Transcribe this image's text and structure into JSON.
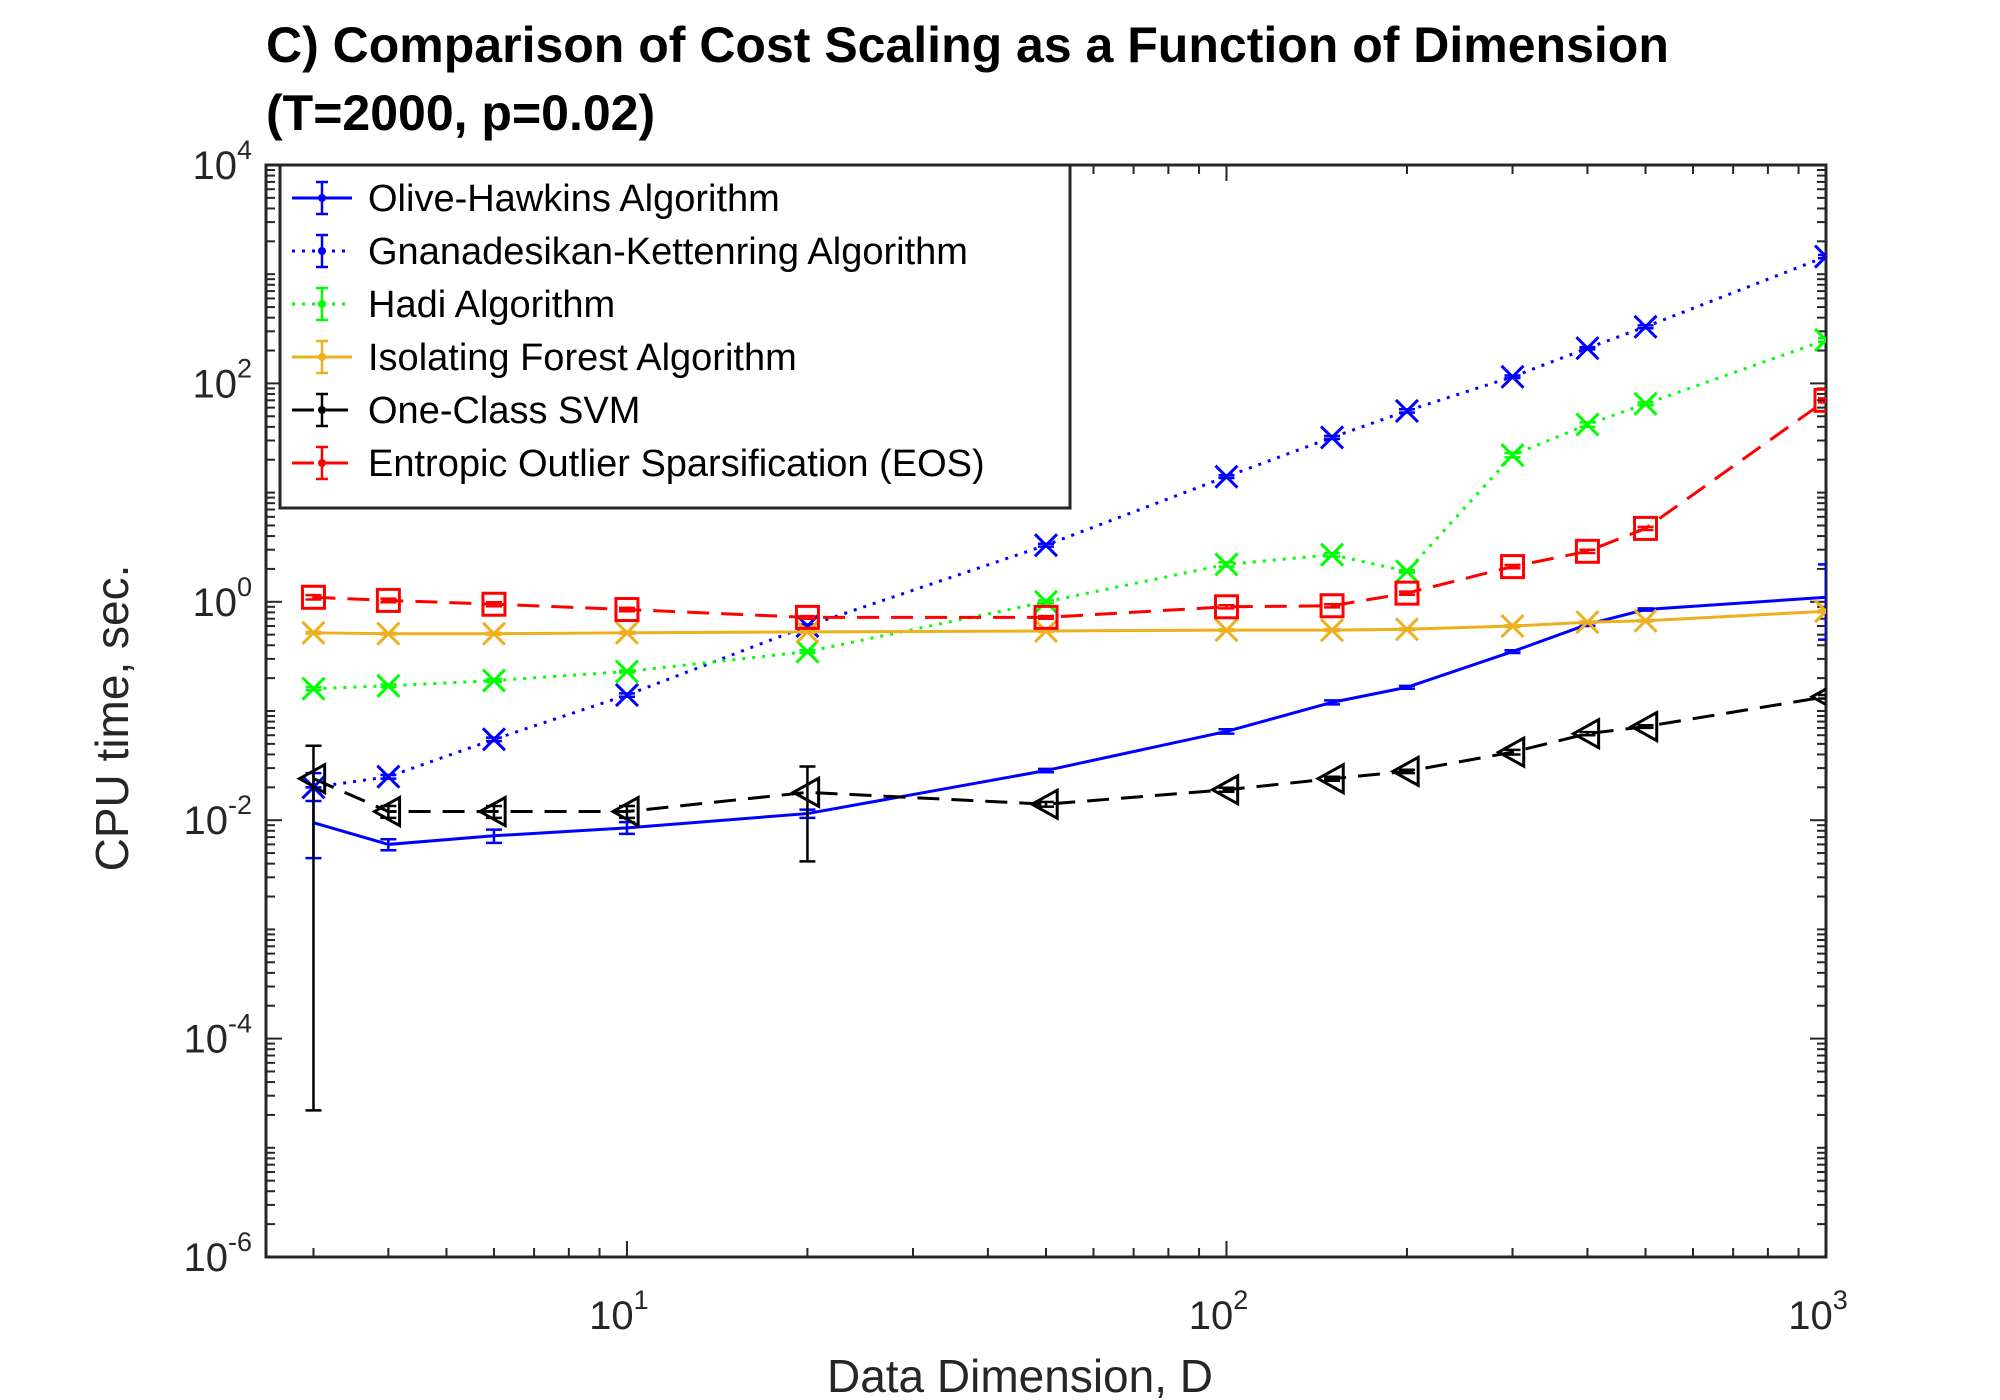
{
  "chart_data": {
    "type": "line",
    "title_line1": "C) Comparison of Cost Scaling as a Function of Dimension",
    "title_line2": "(T=2000, p=0.02)",
    "xlabel": "Data Dimension, D",
    "ylabel": "CPU time, sec.",
    "xscale": "log",
    "yscale": "log",
    "xlim": [
      2.5,
      1000
    ],
    "ylim": [
      1e-06,
      10000
    ],
    "x_ticks": [
      {
        "base": "10",
        "exp": "1",
        "value": 10
      },
      {
        "base": "10",
        "exp": "2",
        "value": 100
      },
      {
        "base": "10",
        "exp": "3",
        "value": 1000
      }
    ],
    "y_ticks": [
      {
        "base": "10",
        "exp": "-6",
        "value": 1e-06
      },
      {
        "base": "10",
        "exp": "-4",
        "value": 0.0001
      },
      {
        "base": "10",
        "exp": "-2",
        "value": 0.01
      },
      {
        "base": "10",
        "exp": "0",
        "value": 1
      },
      {
        "base": "10",
        "exp": "2",
        "value": 100
      },
      {
        "base": "10",
        "exp": "4",
        "value": 10000
      }
    ],
    "grid": false,
    "legend_position": "top-left",
    "series": [
      {
        "name": "Olive-Hawkins Algorithm",
        "color": "#0000ff",
        "line": "solid",
        "marker": "none",
        "x": [
          3,
          4,
          6,
          10,
          20,
          50,
          100,
          150,
          200,
          300,
          400,
          500,
          1000
        ],
        "y": [
          0.0095,
          0.006,
          0.0072,
          0.0085,
          0.0115,
          0.0285,
          0.065,
          0.12,
          0.165,
          0.35,
          0.62,
          0.85,
          1.1
        ],
        "err_low": [
          0.0045,
          0.0053,
          0.0062,
          0.0075,
          0.0105,
          0.0275,
          0.062,
          0.115,
          0.16,
          0.34,
          0.6,
          0.83,
          0.45
        ],
        "err_high": [
          0.02,
          0.0067,
          0.0082,
          0.0096,
          0.0125,
          0.0295,
          0.068,
          0.125,
          0.17,
          0.36,
          0.64,
          0.87,
          2.2
        ]
      },
      {
        "name": "Gnanadesikan-Kettenring Algorithm",
        "color": "#0000ff",
        "line": "dotted",
        "marker": "x",
        "x": [
          3,
          4,
          6,
          10,
          20,
          50,
          100,
          150,
          200,
          300,
          400,
          500,
          1000
        ],
        "y": [
          0.02,
          0.025,
          0.055,
          0.14,
          0.6,
          3.3,
          14,
          32,
          56,
          115,
          210,
          330,
          1450
        ],
        "err_low": [
          0.015,
          0.024,
          0.053,
          0.135,
          0.58,
          3.2,
          13.6,
          31,
          54,
          112,
          205,
          320,
          1400
        ],
        "err_high": [
          0.027,
          0.026,
          0.057,
          0.145,
          0.62,
          3.4,
          14.4,
          33,
          58,
          118,
          215,
          340,
          1500
        ]
      },
      {
        "name": "Hadi Algorithm",
        "color": "#00ff00",
        "line": "dotted",
        "marker": "x",
        "x": [
          3,
          4,
          6,
          10,
          20,
          50,
          100,
          150,
          200,
          300,
          400,
          500,
          1000
        ],
        "y": [
          0.16,
          0.17,
          0.19,
          0.23,
          0.35,
          1.0,
          2.2,
          2.7,
          1.9,
          22,
          42,
          65,
          250
        ],
        "err_low": [
          0.155,
          0.165,
          0.185,
          0.225,
          0.34,
          0.97,
          2.1,
          2.6,
          1.85,
          21,
          40,
          63,
          240
        ],
        "err_high": [
          0.165,
          0.175,
          0.195,
          0.235,
          0.36,
          1.03,
          2.3,
          2.8,
          1.95,
          23,
          44,
          67,
          260
        ]
      },
      {
        "name": "Isolating Forest Algorithm",
        "color": "#edb120",
        "line": "solid",
        "marker": "x",
        "x": [
          3,
          4,
          6,
          10,
          20,
          50,
          100,
          150,
          200,
          300,
          400,
          500,
          1000
        ],
        "y": [
          0.52,
          0.51,
          0.51,
          0.52,
          0.53,
          0.54,
          0.55,
          0.55,
          0.56,
          0.6,
          0.65,
          0.67,
          0.82
        ],
        "err_low": [
          0.51,
          0.5,
          0.5,
          0.51,
          0.52,
          0.53,
          0.54,
          0.54,
          0.55,
          0.59,
          0.64,
          0.66,
          0.8
        ],
        "err_high": [
          0.53,
          0.52,
          0.52,
          0.53,
          0.54,
          0.55,
          0.56,
          0.56,
          0.57,
          0.61,
          0.66,
          0.68,
          0.84
        ]
      },
      {
        "name": "One-Class SVM",
        "color": "#000000",
        "line": "dashed",
        "marker": "triangle-left",
        "x": [
          3,
          4,
          6,
          10,
          20,
          50,
          100,
          150,
          200,
          300,
          400,
          500,
          1000
        ],
        "y": [
          0.024,
          0.012,
          0.012,
          0.012,
          0.018,
          0.014,
          0.019,
          0.024,
          0.028,
          0.042,
          0.062,
          0.072,
          0.135
        ],
        "err_low": [
          2.2e-05,
          0.0105,
          0.0105,
          0.0105,
          0.0042,
          0.0133,
          0.0182,
          0.023,
          0.027,
          0.04,
          0.06,
          0.07,
          0.13
        ],
        "err_high": [
          0.048,
          0.0135,
          0.0135,
          0.0135,
          0.031,
          0.0147,
          0.0198,
          0.025,
          0.029,
          0.044,
          0.064,
          0.074,
          0.14
        ]
      },
      {
        "name": "Entropic Outlier Sparsification (EOS)",
        "color": "#ff0000",
        "line": "dashed",
        "marker": "square",
        "x": [
          3,
          4,
          6,
          10,
          20,
          50,
          100,
          150,
          200,
          300,
          400,
          500,
          1000
        ],
        "y": [
          1.1,
          1.03,
          0.95,
          0.85,
          0.72,
          0.72,
          0.9,
          0.92,
          1.2,
          2.1,
          2.9,
          4.7,
          70
        ],
        "err_low": [
          1.05,
          0.99,
          0.91,
          0.82,
          0.7,
          0.7,
          0.87,
          0.89,
          1.16,
          2.03,
          2.8,
          4.55,
          67
        ],
        "err_high": [
          1.15,
          1.07,
          0.99,
          0.88,
          0.74,
          0.74,
          0.93,
          0.95,
          1.24,
          2.17,
          3.0,
          4.85,
          73
        ]
      }
    ]
  }
}
